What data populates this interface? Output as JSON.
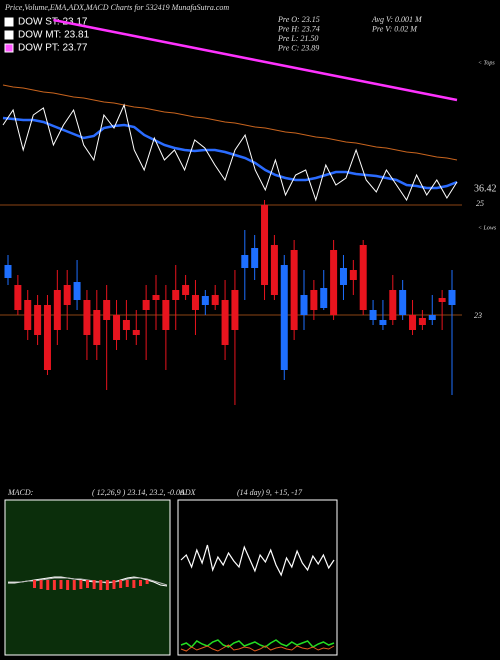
{
  "header": {
    "title": "Price,Volume,EMA,ADX,MACD Charts for 532419 MunafaSutra.com",
    "legend": [
      {
        "text": "DOW ST: 23.17",
        "color": "#ffffff"
      },
      {
        "text": "DOW MT: 23.81",
        "color": "#ffffff"
      },
      {
        "text": "DOW PT: 23.77",
        "color": "#ff55ff"
      }
    ],
    "stats": [
      "Pre   O: 23.15",
      "Avg V: 0.001 M",
      "Pre   H: 23.74",
      "Pre   V: 0.02 M",
      "Pre   L: 21.50",
      "Pre   C: 23.89"
    ],
    "tops": "< Tops",
    "lows": "< Lows",
    "price_levels": [
      "36.42",
      "25"
    ],
    "candle_level": "23",
    "macd_label": "MACD:",
    "macd_params": "( 12,26,9 ) 23.14, 23.2, -0.06",
    "adx_label": "ADX",
    "adx_params": "(14  day) 9, +15, -17"
  },
  "chart_data": [
    {
      "type": "line",
      "ylim": [
        0,
        205
      ],
      "series": [
        {
          "color": "#ff33ff",
          "width": 2.5,
          "values": [
            null,
            null,
            null,
            null,
            null,
            185,
            183,
            181,
            179,
            177,
            175,
            173,
            171,
            169,
            167,
            165,
            163,
            161,
            159,
            157,
            155,
            153,
            151,
            149,
            147,
            145,
            143,
            141,
            139,
            137,
            135,
            133,
            131,
            129,
            127,
            125,
            123,
            121,
            119,
            117,
            115,
            113,
            111,
            109,
            107,
            105
          ]
        },
        {
          "color": "#c8641e",
          "width": 1,
          "values": [
            120,
            118,
            117,
            115,
            113,
            112,
            110,
            108,
            107,
            105,
            103,
            102,
            100,
            98,
            97,
            95,
            93,
            92,
            90,
            88,
            87,
            85,
            83,
            82,
            80,
            78,
            77,
            75,
            73,
            72,
            70,
            68,
            67,
            65,
            63,
            62,
            60,
            58,
            57,
            55,
            53,
            52,
            50,
            48,
            47,
            45
          ]
        },
        {
          "color": "#2b6cff",
          "width": 2.5,
          "values": [
            87,
            86,
            85,
            85,
            83,
            79,
            75,
            71,
            67,
            69,
            77,
            79,
            80,
            78,
            70,
            65,
            60,
            57,
            55,
            54,
            55,
            55,
            53,
            50,
            47,
            42,
            35,
            30,
            27,
            25,
            25,
            27,
            30,
            33,
            33,
            31,
            30,
            29,
            27,
            25,
            20,
            19,
            17,
            17,
            19,
            23
          ]
        },
        {
          "color": "#ffffff",
          "width": 1,
          "values": [
            80,
            95,
            55,
            90,
            97,
            60,
            80,
            95,
            60,
            45,
            90,
            77,
            100,
            55,
            35,
            67,
            45,
            55,
            35,
            65,
            57,
            40,
            25,
            55,
            70,
            35,
            15,
            45,
            10,
            30,
            35,
            5,
            40,
            20,
            27,
            55,
            25,
            13,
            35,
            20,
            5,
            30,
            10,
            25,
            7,
            23
          ]
        }
      ]
    },
    {
      "type": "candlestick",
      "ylim": [
        0,
        210
      ],
      "up_color": "#1e6fff",
      "down_color": "#e8141e",
      "open": [
        132,
        125,
        110,
        105,
        105,
        120,
        125,
        110,
        110,
        100,
        110,
        95,
        90,
        80,
        110,
        115,
        110,
        120,
        125,
        115,
        105,
        115,
        110,
        120,
        142,
        142,
        205,
        165,
        40,
        160,
        95,
        120,
        102,
        160,
        125,
        140,
        165,
        90,
        85,
        120,
        95,
        95,
        92,
        90,
        112,
        105
      ],
      "close": [
        145,
        100,
        80,
        75,
        40,
        80,
        105,
        128,
        75,
        65,
        90,
        70,
        80,
        75,
        100,
        110,
        80,
        110,
        115,
        100,
        114,
        105,
        65,
        80,
        155,
        162,
        125,
        115,
        145,
        80,
        115,
        100,
        122,
        95,
        142,
        130,
        100,
        100,
        90,
        90,
        120,
        80,
        85,
        95,
        108,
        120
      ],
      "high": [
        155,
        135,
        120,
        115,
        115,
        140,
        140,
        150,
        120,
        120,
        125,
        110,
        110,
        100,
        125,
        135,
        125,
        145,
        135,
        130,
        120,
        125,
        130,
        140,
        180,
        175,
        210,
        175,
        155,
        170,
        140,
        130,
        140,
        170,
        155,
        150,
        170,
        110,
        110,
        135,
        130,
        110,
        100,
        115,
        120,
        140
      ],
      "low": [
        125,
        95,
        70,
        65,
        35,
        65,
        80,
        100,
        50,
        50,
        20,
        60,
        70,
        65,
        50,
        80,
        40,
        80,
        110,
        75,
        95,
        100,
        50,
        5,
        110,
        130,
        110,
        110,
        30,
        70,
        80,
        90,
        100,
        90,
        110,
        115,
        95,
        85,
        80,
        85,
        90,
        75,
        80,
        85,
        80,
        15
      ]
    },
    {
      "type": "macd",
      "ylim": [
        -75,
        80
      ],
      "series": [
        {
          "color": "#ffffff",
          "width": 1,
          "values": [
            -3,
            -3,
            -2,
            -1,
            0,
            1,
            2,
            3,
            3,
            2,
            1,
            0,
            -1,
            -2,
            -2,
            -3,
            -2,
            0,
            2,
            3,
            2,
            0,
            -2,
            -5,
            -6
          ]
        },
        {
          "color": "#bbbbbb",
          "width": 1,
          "values": [
            -2,
            -2,
            -2,
            -1,
            -1,
            0,
            1,
            2,
            2,
            2,
            1,
            1,
            0,
            -1,
            -2,
            -2,
            -2,
            -1,
            1,
            2,
            2,
            1,
            -1,
            -3,
            -5
          ]
        }
      ],
      "histogram": {
        "color": "#ff3333",
        "values": [
          null,
          null,
          null,
          null,
          -8,
          -9,
          -10,
          -10,
          -9,
          -10,
          -10,
          -9,
          -8,
          -9,
          -10,
          -10,
          -9,
          -8,
          -7,
          -8,
          -6,
          -4,
          null,
          null,
          null
        ]
      }
    },
    {
      "type": "line",
      "ylim": [
        0,
        155
      ],
      "series": [
        {
          "color": "#ffffff",
          "width": 1.2,
          "values": [
            95,
            100,
            88,
            105,
            92,
            110,
            85,
            98,
            90,
            102,
            94,
            88,
            108,
            96,
            84,
            100,
            93,
            105,
            90,
            80,
            97,
            88,
            104,
            92,
            85,
            99,
            91,
            100,
            87,
            95
          ]
        },
        {
          "color": "#22dd22",
          "width": 1.5,
          "values": [
            10,
            12,
            8,
            14,
            11,
            9,
            13,
            15,
            10,
            8,
            12,
            14,
            9,
            11,
            13,
            10,
            8,
            12,
            15,
            11,
            9,
            13,
            10,
            12,
            14,
            8,
            11,
            13,
            10,
            12
          ]
        },
        {
          "color": "#e05a1e",
          "width": 1,
          "values": [
            6,
            4,
            8,
            5,
            7,
            9,
            6,
            4,
            7,
            10,
            5,
            6,
            8,
            7,
            4,
            6,
            9,
            5,
            7,
            8,
            6,
            5,
            9,
            7,
            6,
            8,
            5,
            7,
            6,
            9
          ]
        }
      ]
    }
  ]
}
